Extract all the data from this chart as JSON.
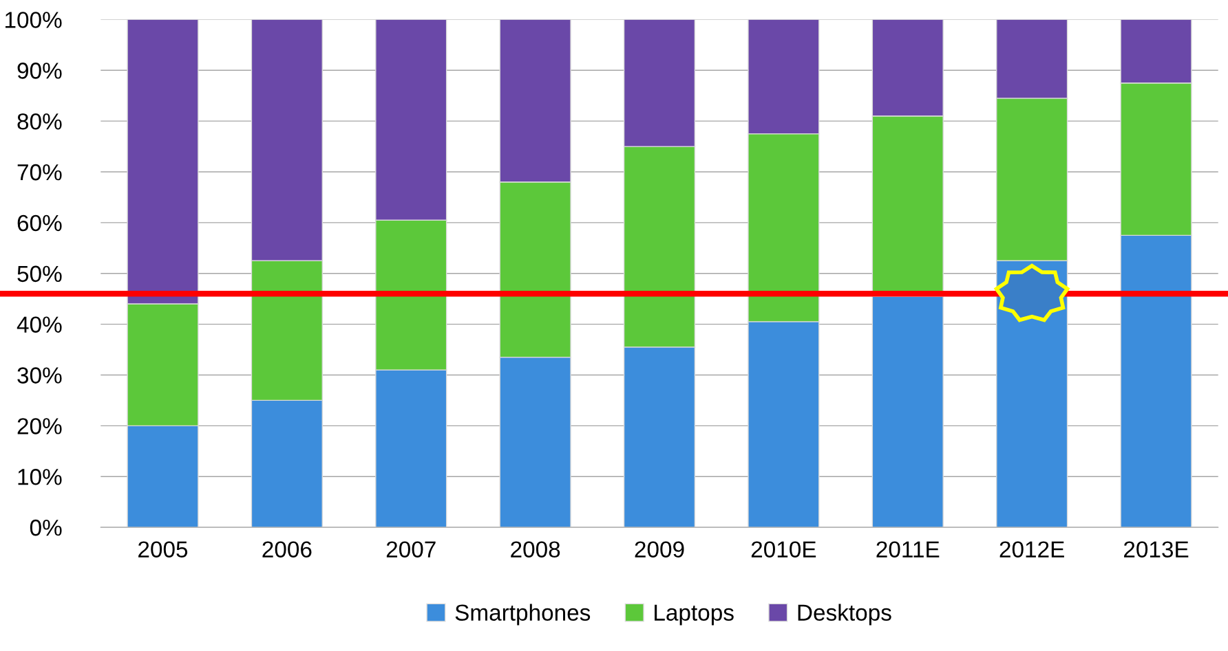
{
  "chart_data": {
    "type": "bar",
    "stacked": true,
    "categories": [
      "2005",
      "2006",
      "2007",
      "2008",
      "2009",
      "2010E",
      "2011E",
      "2012E",
      "2013E"
    ],
    "series": [
      {
        "name": "Smartphones",
        "color": "#3c8ddc",
        "values": [
          20,
          25,
          31,
          33.5,
          35.5,
          40.5,
          45.5,
          52.5,
          57.5
        ]
      },
      {
        "name": "Laptops",
        "color": "#5cc83a",
        "values": [
          24,
          27.5,
          29.5,
          34.5,
          39.5,
          37,
          35.5,
          32,
          30
        ]
      },
      {
        "name": "Desktops",
        "color": "#6a48a8",
        "values": [
          56,
          47.5,
          39.5,
          32,
          25,
          22.5,
          19,
          15.5,
          12.5
        ]
      }
    ],
    "ylim": [
      0,
      100
    ],
    "yticks": [
      {
        "value": 0,
        "label": "0%"
      },
      {
        "value": 10,
        "label": "10%"
      },
      {
        "value": 20,
        "label": "20%"
      },
      {
        "value": 30,
        "label": "30%"
      },
      {
        "value": 40,
        "label": "40%"
      },
      {
        "value": 50,
        "label": "50%"
      },
      {
        "value": 60,
        "label": "60%"
      },
      {
        "value": 70,
        "label": "70%"
      },
      {
        "value": 80,
        "label": "80%"
      },
      {
        "value": 90,
        "label": "90%"
      },
      {
        "value": 100,
        "label": "100%"
      }
    ],
    "ref_lines": [
      {
        "axis": "y",
        "value": 46,
        "color": "#ff0000"
      }
    ],
    "grid": "y",
    "legend": "bottom"
  }
}
